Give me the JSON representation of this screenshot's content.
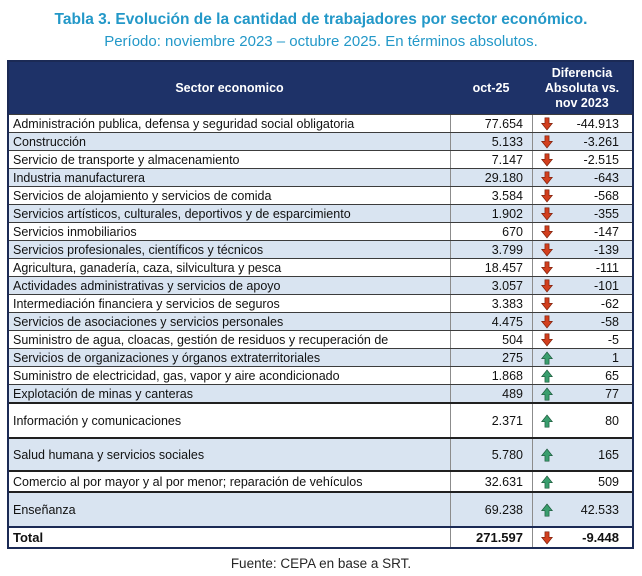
{
  "title": "Tabla 3. Evolución de la cantidad de trabajadores por sector económico.",
  "subtitle": "Período: noviembre 2023 – octubre 2025. En términos absolutos.",
  "footer": "Fuente: CEPA en base a SRT.",
  "colors": {
    "accent_title": "#2398c8",
    "header_bg": "#1e3268",
    "header_text": "#ffffff",
    "row_alt_bg": "#d9e4f1",
    "up_arrow": "#3a9e6e",
    "down_arrow": "#d23f1e",
    "border_dark": "#1b2a55"
  },
  "icons": {
    "up": "up-arrow-icon",
    "down": "down-arrow-icon"
  },
  "chart_data": {
    "type": "table",
    "title": "Tabla 3. Evolución de la cantidad de trabajadores por sector económico.",
    "subtitle": "Período: noviembre 2023 – octubre 2025. En términos absolutos.",
    "columns": [
      "Sector economico",
      "oct-25",
      "Diferencia\nAbsoluta vs.\nnov 2023"
    ],
    "rows": [
      {
        "label": "Administración publica, defensa y seguridad social obligatoria",
        "value": "77.654",
        "direction": "down",
        "diff": "-44.913"
      },
      {
        "label": "Construcción",
        "value": "5.133",
        "direction": "down",
        "diff": "-3.261"
      },
      {
        "label": "Servicio de transporte y almacenamiento",
        "value": "7.147",
        "direction": "down",
        "diff": "-2.515"
      },
      {
        "label": "Industria manufacturera",
        "value": "29.180",
        "direction": "down",
        "diff": "-643"
      },
      {
        "label": "Servicios de alojamiento y servicios de comida",
        "value": "3.584",
        "direction": "down",
        "diff": "-568"
      },
      {
        "label": "Servicios artísticos, culturales, deportivos y de esparcimiento",
        "value": "1.902",
        "direction": "down",
        "diff": "-355"
      },
      {
        "label": "Servicios inmobiliarios",
        "value": "670",
        "direction": "down",
        "diff": "-147"
      },
      {
        "label": "Servicios profesionales, científicos y técnicos",
        "value": "3.799",
        "direction": "down",
        "diff": "-139"
      },
      {
        "label": "Agricultura, ganadería, caza, silvicultura y pesca",
        "value": "18.457",
        "direction": "down",
        "diff": "-111"
      },
      {
        "label": "Actividades administrativas y servicios de apoyo",
        "value": "3.057",
        "direction": "down",
        "diff": "-101"
      },
      {
        "label": "Intermediación financiera y servicios de seguros",
        "value": "3.383",
        "direction": "down",
        "diff": "-62"
      },
      {
        "label": "Servicios de asociaciones y servicios personales",
        "value": "4.475",
        "direction": "down",
        "diff": "-58"
      },
      {
        "label": "Suministro de agua, cloacas, gestión de residuos y recuperación de",
        "value": "504",
        "direction": "down",
        "diff": "-5"
      },
      {
        "label": "Servicios de organizaciones y órganos extraterritoriales",
        "value": "275",
        "direction": "up",
        "diff": "1"
      },
      {
        "label": "Suministro de electricidad, gas, vapor y aire acondicionado",
        "value": "1.868",
        "direction": "up",
        "diff": "65"
      },
      {
        "label": "Explotación de minas y canteras",
        "value": "489",
        "direction": "up",
        "diff": "77"
      },
      {
        "label": "Información y comunicaciones",
        "value": "2.371",
        "direction": "up",
        "diff": "80"
      },
      {
        "label": "Salud humana y servicios sociales",
        "value": "5.780",
        "direction": "up",
        "diff": "165"
      },
      {
        "label": "Comercio al por mayor y al por menor; reparación de vehículos",
        "value": "32.631",
        "direction": "up",
        "diff": "509"
      },
      {
        "label": "Enseñanza",
        "value": "69.238",
        "direction": "up",
        "diff": "42.533"
      }
    ],
    "total": {
      "label": "Total",
      "value": "271.597",
      "direction": "down",
      "diff": "-9.448"
    },
    "source": "Fuente: CEPA en base a SRT."
  }
}
